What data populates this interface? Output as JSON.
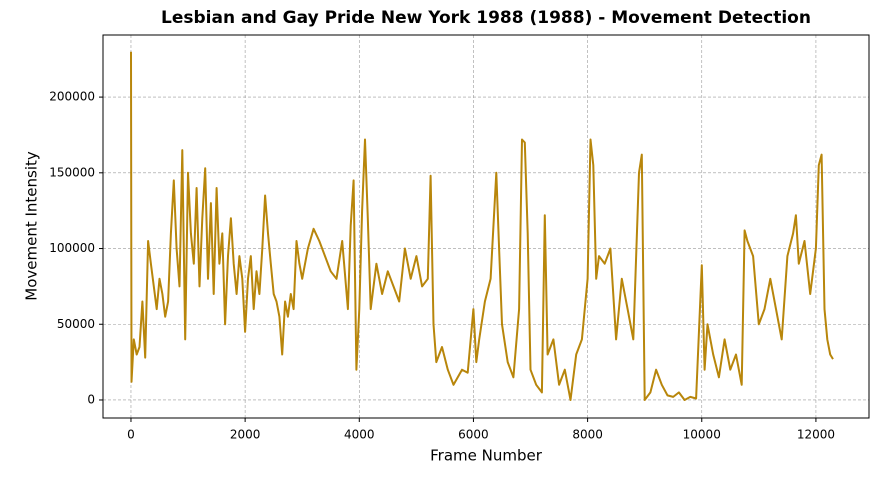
{
  "chart_data": {
    "type": "line",
    "title": "Lesbian and Gay Pride New York 1988 (1988) - Movement Detection",
    "x_label": "Frame Number",
    "y_label": "Movement Intensity",
    "x": [
      0,
      10,
      50,
      100,
      150,
      200,
      250,
      300,
      350,
      400,
      450,
      500,
      550,
      600,
      650,
      700,
      750,
      800,
      850,
      900,
      950,
      1000,
      1050,
      1100,
      1150,
      1200,
      1250,
      1300,
      1350,
      1400,
      1450,
      1500,
      1550,
      1600,
      1650,
      1700,
      1750,
      1800,
      1850,
      1900,
      1950,
      2000,
      2050,
      2100,
      2150,
      2200,
      2250,
      2300,
      2350,
      2400,
      2450,
      2500,
      2550,
      2600,
      2650,
      2700,
      2750,
      2800,
      2850,
      2900,
      2950,
      3000,
      3100,
      3200,
      3300,
      3400,
      3500,
      3600,
      3700,
      3800,
      3850,
      3900,
      3950,
      4000,
      4050,
      4100,
      4150,
      4200,
      4300,
      4400,
      4500,
      4600,
      4700,
      4800,
      4900,
      5000,
      5100,
      5200,
      5250,
      5300,
      5350,
      5450,
      5550,
      5650,
      5800,
      5900,
      6000,
      6050,
      6100,
      6200,
      6300,
      6400,
      6450,
      6500,
      6600,
      6700,
      6800,
      6850,
      6900,
      6950,
      7000,
      7100,
      7200,
      7250,
      7300,
      7400,
      7500,
      7600,
      7700,
      7800,
      7900,
      8000,
      8050,
      8100,
      8150,
      8200,
      8300,
      8400,
      8500,
      8600,
      8700,
      8800,
      8900,
      8950,
      9000,
      9100,
      9200,
      9300,
      9400,
      9500,
      9600,
      9700,
      9800,
      9900,
      10000,
      10050,
      10100,
      10200,
      10300,
      10400,
      10500,
      10600,
      10700,
      10750,
      10800,
      10900,
      11000,
      11100,
      11200,
      11300,
      11400,
      11500,
      11600,
      11650,
      11700,
      11800,
      11900,
      12000,
      12050,
      12100,
      12150,
      12200,
      12250,
      12300
    ],
    "series": [
      {
        "name": "Movement Intensity",
        "color": "#b8860b",
        "values": [
          230000,
          12000,
          40000,
          30000,
          35000,
          65000,
          28000,
          105000,
          90000,
          75000,
          60000,
          80000,
          70000,
          55000,
          65000,
          110000,
          145000,
          100000,
          75000,
          165000,
          40000,
          150000,
          110000,
          90000,
          140000,
          75000,
          120000,
          153000,
          80000,
          130000,
          70000,
          140000,
          90000,
          110000,
          50000,
          95000,
          120000,
          90000,
          70000,
          95000,
          80000,
          45000,
          80000,
          95000,
          60000,
          85000,
          70000,
          100000,
          135000,
          110000,
          90000,
          70000,
          65000,
          55000,
          30000,
          65000,
          55000,
          70000,
          60000,
          105000,
          90000,
          80000,
          100000,
          113000,
          105000,
          95000,
          85000,
          80000,
          105000,
          60000,
          115000,
          145000,
          20000,
          60000,
          125000,
          172000,
          120000,
          60000,
          90000,
          70000,
          85000,
          75000,
          65000,
          100000,
          80000,
          95000,
          75000,
          80000,
          148000,
          50000,
          25000,
          35000,
          20000,
          10000,
          20000,
          18000,
          60000,
          25000,
          40000,
          65000,
          80000,
          150000,
          100000,
          50000,
          25000,
          15000,
          60000,
          172000,
          170000,
          110000,
          20000,
          10000,
          5000,
          122000,
          30000,
          40000,
          10000,
          20000,
          0,
          30000,
          40000,
          80000,
          172000,
          155000,
          80000,
          95000,
          90000,
          100000,
          40000,
          80000,
          60000,
          40000,
          150000,
          162000,
          0,
          5000,
          20000,
          10000,
          3000,
          2000,
          5000,
          0,
          2000,
          1000,
          89000,
          20000,
          50000,
          30000,
          15000,
          40000,
          20000,
          30000,
          10000,
          112000,
          105000,
          95000,
          50000,
          60000,
          80000,
          60000,
          40000,
          95000,
          110000,
          122000,
          90000,
          105000,
          70000,
          100000,
          155000,
          162000,
          60000,
          40000,
          30000,
          27000
        ]
      }
    ],
    "xlim": [
      -490,
      12930
    ],
    "xticks": [
      0,
      2000,
      4000,
      6000,
      8000,
      10000,
      12000
    ],
    "ylim": [
      -11900,
      241000
    ],
    "yticks": [
      0,
      50000,
      100000,
      150000,
      200000
    ],
    "grid": true
  }
}
